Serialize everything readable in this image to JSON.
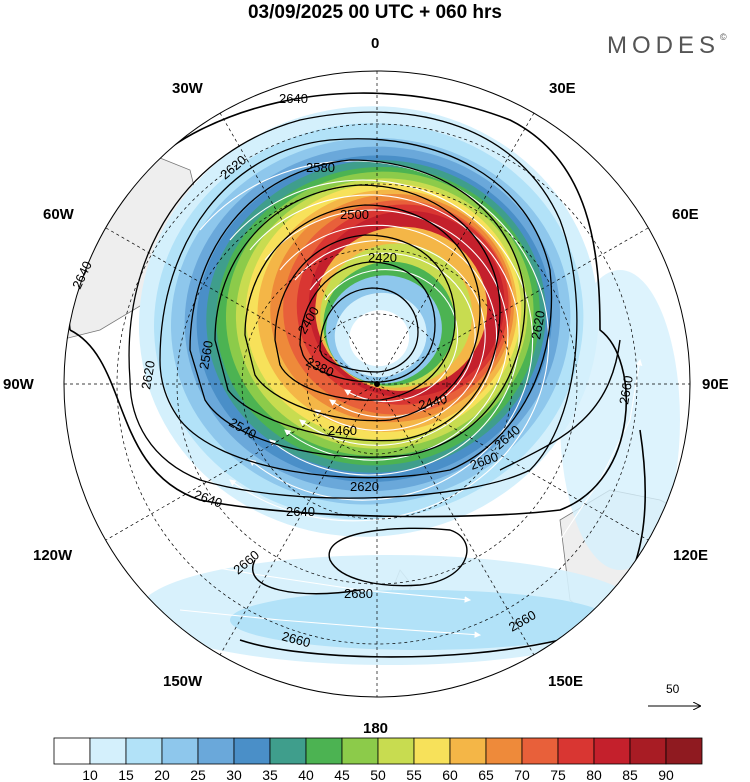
{
  "title": "03/09/2025  00 UTC  + 060 hrs",
  "brand": {
    "name": "MODES",
    "mark": "©"
  },
  "longitude_labels": [
    {
      "id": "0",
      "text": "0"
    },
    {
      "id": "30e",
      "text": "30E"
    },
    {
      "id": "60e",
      "text": "60E"
    },
    {
      "id": "90e",
      "text": "90E"
    },
    {
      "id": "120e",
      "text": "120E"
    },
    {
      "id": "150e",
      "text": "150E"
    },
    {
      "id": "180",
      "text": "180"
    },
    {
      "id": "150w",
      "text": "150W"
    },
    {
      "id": "120w",
      "text": "120W"
    },
    {
      "id": "90w",
      "text": "90W"
    },
    {
      "id": "60w",
      "text": "60W"
    },
    {
      "id": "30w",
      "text": "30W"
    }
  ],
  "contour_labels": [
    {
      "id": "c2640a",
      "text": "2640"
    },
    {
      "id": "c2640b",
      "text": "2640"
    },
    {
      "id": "c2640c",
      "text": "2640"
    },
    {
      "id": "c2640d",
      "text": "2640"
    },
    {
      "id": "c2640e",
      "text": "2640"
    },
    {
      "id": "c2620a",
      "text": "2620"
    },
    {
      "id": "c2620b",
      "text": "2620"
    },
    {
      "id": "c2620c",
      "text": "2620"
    },
    {
      "id": "c2620d",
      "text": "2620"
    },
    {
      "id": "c2580",
      "text": "2580"
    },
    {
      "id": "c2500",
      "text": "2500"
    },
    {
      "id": "c2420",
      "text": "2420"
    },
    {
      "id": "c2400",
      "text": "2400"
    },
    {
      "id": "c2380",
      "text": "2380"
    },
    {
      "id": "c2560",
      "text": "2560"
    },
    {
      "id": "c2540",
      "text": "2540"
    },
    {
      "id": "c2460",
      "text": "2460"
    },
    {
      "id": "c2440",
      "text": "2440"
    },
    {
      "id": "c2600",
      "text": "2600"
    },
    {
      "id": "c2660a",
      "text": "2660"
    },
    {
      "id": "c2660b",
      "text": "2660"
    },
    {
      "id": "c2660c",
      "text": "2660"
    },
    {
      "id": "c2660d",
      "text": "2660"
    },
    {
      "id": "c2680",
      "text": "2680"
    }
  ],
  "reference_vector": {
    "label": "50"
  },
  "colorbar": {
    "levels": [
      "10",
      "15",
      "20",
      "25",
      "30",
      "35",
      "40",
      "45",
      "50",
      "55",
      "60",
      "65",
      "70",
      "75",
      "80",
      "85",
      "90"
    ],
    "colors": [
      "#ffffff",
      "#d4f0fc",
      "#b2e2f8",
      "#8ec7ec",
      "#6aa8da",
      "#4a8fc8",
      "#3f9e8c",
      "#4cb352",
      "#8ccb4a",
      "#c8dc50",
      "#f7e15a",
      "#f4b647",
      "#ee8a3a",
      "#e8603a",
      "#d93632",
      "#c4202c",
      "#a81c24",
      "#8f1a20"
    ]
  },
  "colors": {
    "land": "#eeeeee",
    "coast": "#777777",
    "grid": "#000000",
    "contour": "#000000",
    "vector": "#ffffff"
  }
}
